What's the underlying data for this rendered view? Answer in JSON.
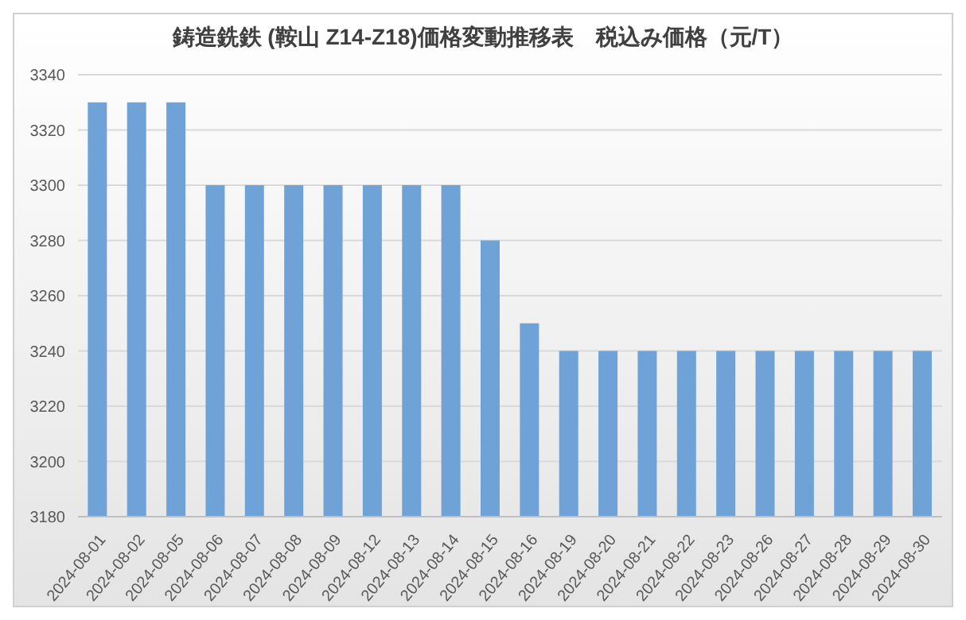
{
  "chart_data": {
    "type": "bar",
    "title": "鋳造銑鉄 (鞍山 Z14-Z18)価格変動推移表　税込み価格（元/T）",
    "categories": [
      "2024-08-01",
      "2024-08-02",
      "2024-08-05",
      "2024-08-06",
      "2024-08-07",
      "2024-08-08",
      "2024-08-09",
      "2024-08-12",
      "2024-08-13",
      "2024-08-14",
      "2024-08-15",
      "2024-08-16",
      "2024-08-19",
      "2024-08-20",
      "2024-08-21",
      "2024-08-22",
      "2024-08-23",
      "2024-08-26",
      "2024-08-27",
      "2024-08-28",
      "2024-08-29",
      "2024-08-30"
    ],
    "values": [
      3330,
      3330,
      3330,
      3300,
      3300,
      3300,
      3300,
      3300,
      3300,
      3300,
      3280,
      3250,
      3240,
      3240,
      3240,
      3240,
      3240,
      3240,
      3240,
      3240,
      3240,
      3240
    ],
    "color": "#6fa3d8",
    "ylim": [
      3180,
      3340
    ],
    "yticks": [
      3180,
      3200,
      3220,
      3240,
      3260,
      3280,
      3300,
      3320,
      3340
    ],
    "grid": "y",
    "legend": false
  }
}
